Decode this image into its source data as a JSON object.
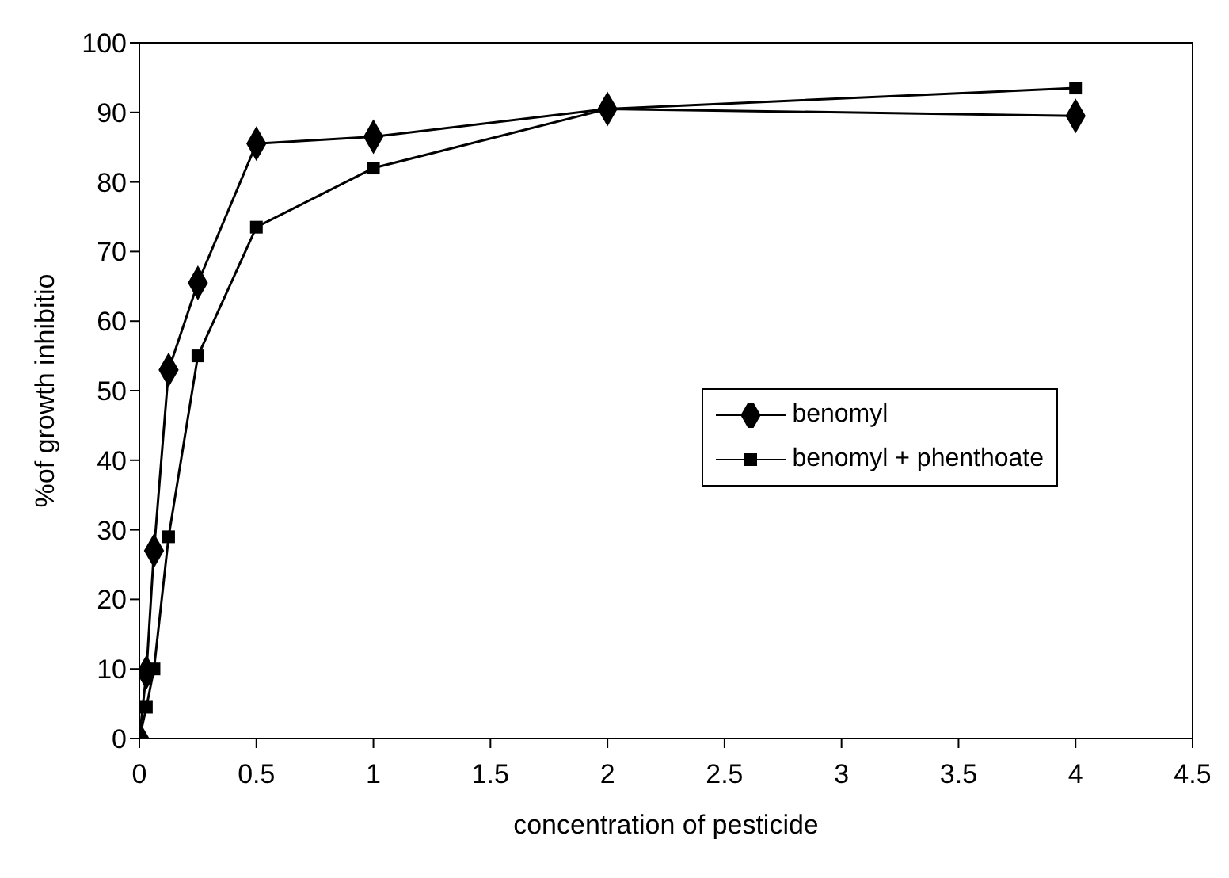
{
  "chart_data": {
    "type": "line",
    "xlabel": "concentration of pesticide",
    "ylabel": "%of growth inhibitio",
    "x": [
      0,
      0.03,
      0.0625,
      0.125,
      0.25,
      0.5,
      1,
      2,
      4
    ],
    "series": [
      {
        "name": "benomyl",
        "color": "#000000",
        "marker": "diamond",
        "values": [
          0,
          9.5,
          27,
          53,
          65.5,
          85.5,
          86.5,
          90.5,
          89.5
        ]
      },
      {
        "name": "benomyl + phenthoate",
        "color": "#000000",
        "marker": "square",
        "values": [
          0,
          4.5,
          10,
          29,
          55,
          73.5,
          82,
          90.5,
          93.5
        ]
      }
    ],
    "xlim": [
      0,
      4.5
    ],
    "xticks": [
      0,
      0.5,
      1,
      1.5,
      2,
      2.5,
      3,
      3.5,
      4,
      4.5
    ],
    "ylim": [
      0,
      100
    ],
    "yticks": [
      0,
      10,
      20,
      30,
      40,
      50,
      60,
      70,
      80,
      90,
      100
    ],
    "grid": false,
    "legend": "right",
    "line_style": "solid"
  }
}
